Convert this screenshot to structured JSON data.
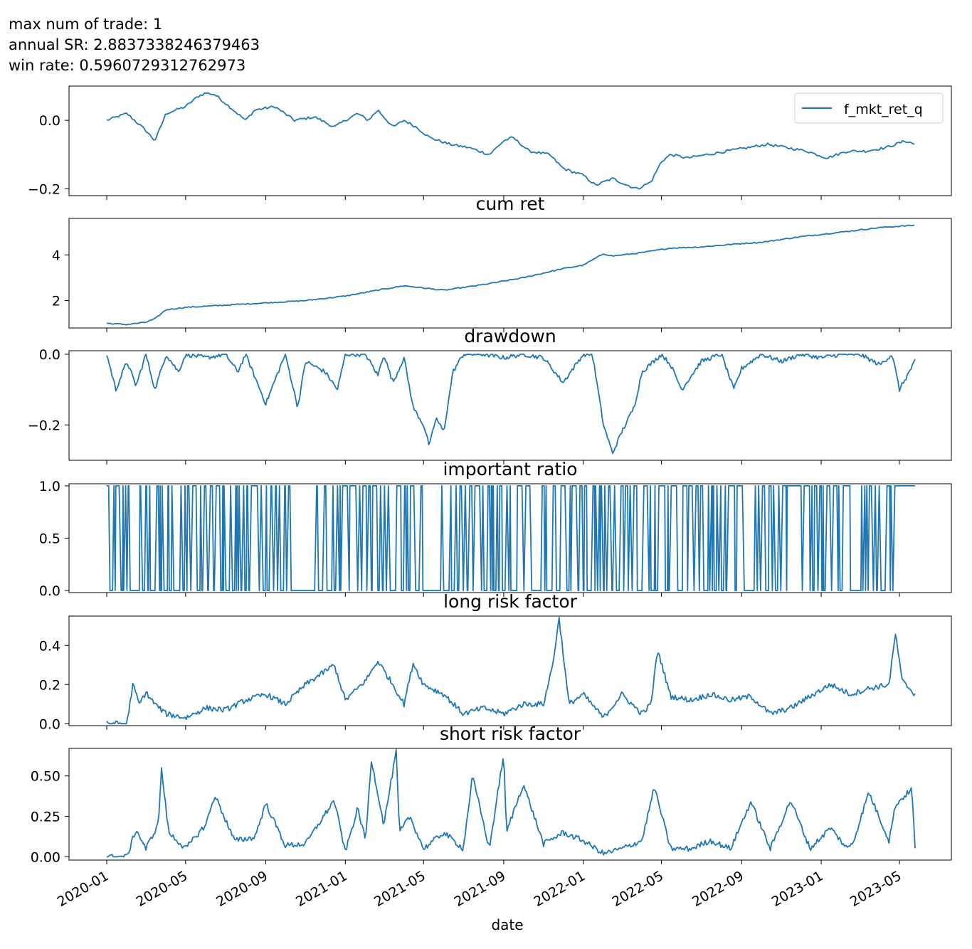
{
  "header": {
    "line1": "max num of trade: 1",
    "line2": "annual SR: 2.8837338246379463",
    "line3": "win rate: 0.5960729312762973"
  },
  "colors": {
    "line": "#1f77b4",
    "axis": "#000000",
    "background": "#ffffff"
  },
  "chart_data": {
    "type": "line",
    "xlabel": "date",
    "x_range": [
      "2020-01-01",
      "2023-06-30"
    ],
    "x_ticks": [
      "2020-01",
      "2020-05",
      "2020-09",
      "2021-01",
      "2021-05",
      "2021-09",
      "2022-01",
      "2022-05",
      "2022-09",
      "2023-01",
      "2023-05"
    ],
    "panels": [
      {
        "title": "",
        "legend": {
          "label": "f_mkt_ret_q",
          "position": "upper right"
        },
        "ylim": [
          -0.22,
          0.1
        ],
        "yticks": [
          0.0,
          -0.2
        ],
        "ytick_labels": [
          "0.0",
          "−0.2"
        ],
        "series": [
          {
            "name": "f_mkt_ret_q",
            "x": [
              "2020-01-01",
              "2020-02-01",
              "2020-03-01",
              "2020-03-15",
              "2020-04-01",
              "2020-05-01",
              "2020-05-20",
              "2020-06-01",
              "2020-06-15",
              "2020-07-01",
              "2020-08-01",
              "2020-08-15",
              "2020-09-15",
              "2020-10-15",
              "2020-11-15",
              "2020-12-15",
              "2021-01-01",
              "2021-01-20",
              "2021-02-05",
              "2021-02-20",
              "2021-03-15",
              "2021-04-01",
              "2021-04-20",
              "2021-05-10",
              "2021-06-10",
              "2021-07-10",
              "2021-08-10",
              "2021-09-01",
              "2021-09-15",
              "2021-10-10",
              "2021-11-10",
              "2021-12-01",
              "2021-12-15",
              "2022-01-01",
              "2022-01-20",
              "2022-02-15",
              "2022-03-10",
              "2022-03-25",
              "2022-04-15",
              "2022-05-01",
              "2022-05-15",
              "2022-06-10",
              "2022-07-10",
              "2022-08-10",
              "2022-09-10",
              "2022-10-10",
              "2022-11-10",
              "2022-12-10",
              "2023-01-10",
              "2023-02-10",
              "2023-03-10",
              "2023-04-10",
              "2023-05-10",
              "2023-05-25"
            ],
            "values": [
              0.0,
              0.02,
              -0.03,
              -0.06,
              0.02,
              0.04,
              0.07,
              0.08,
              0.075,
              0.05,
              0.0,
              0.03,
              0.04,
              0.0,
              0.01,
              -0.02,
              0.0,
              0.02,
              0.0,
              0.03,
              -0.02,
              0.0,
              -0.02,
              -0.05,
              -0.07,
              -0.08,
              -0.1,
              -0.06,
              -0.05,
              -0.09,
              -0.1,
              -0.14,
              -0.15,
              -0.16,
              -0.19,
              -0.17,
              -0.19,
              -0.2,
              -0.18,
              -0.12,
              -0.1,
              -0.11,
              -0.1,
              -0.09,
              -0.08,
              -0.07,
              -0.08,
              -0.09,
              -0.11,
              -0.09,
              -0.09,
              -0.08,
              -0.06,
              -0.07
            ]
          }
        ]
      },
      {
        "title": "cum ret",
        "ylim": [
          0.8,
          5.6
        ],
        "yticks": [
          2,
          4
        ],
        "ytick_labels": [
          "2",
          "4"
        ],
        "series": [
          {
            "name": "cum ret",
            "x": [
              "2020-01-01",
              "2020-02-01",
              "2020-03-01",
              "2020-03-15",
              "2020-04-01",
              "2020-05-01",
              "2020-07-01",
              "2020-09-01",
              "2020-11-01",
              "2021-01-01",
              "2021-03-01",
              "2021-04-01",
              "2021-06-01",
              "2021-08-01",
              "2021-10-01",
              "2021-12-01",
              "2022-01-01",
              "2022-02-01",
              "2022-02-15",
              "2022-04-01",
              "2022-05-15",
              "2022-07-01",
              "2022-09-01",
              "2022-10-01",
              "2022-12-01",
              "2023-02-01",
              "2023-04-01",
              "2023-05-25"
            ],
            "values": [
              1.0,
              0.95,
              1.05,
              1.2,
              1.6,
              1.7,
              1.8,
              1.9,
              2.0,
              2.2,
              2.5,
              2.65,
              2.45,
              2.7,
              3.0,
              3.4,
              3.55,
              4.05,
              3.95,
              4.1,
              4.3,
              4.35,
              4.5,
              4.55,
              4.8,
              5.0,
              5.2,
              5.3
            ]
          }
        ]
      },
      {
        "title": "drawdown",
        "ylim": [
          -0.3,
          0.01
        ],
        "yticks": [
          0.0,
          -0.2
        ],
        "ytick_labels": [
          "0.0",
          "−0.2"
        ],
        "series": [
          {
            "name": "drawdown",
            "x": [
              "2020-01-01",
              "2020-01-15",
              "2020-02-01",
              "2020-02-15",
              "2020-03-01",
              "2020-03-15",
              "2020-04-01",
              "2020-04-20",
              "2020-05-01",
              "2020-06-01",
              "2020-07-01",
              "2020-07-20",
              "2020-08-01",
              "2020-09-01",
              "2020-09-20",
              "2020-10-01",
              "2020-10-20",
              "2020-11-01",
              "2020-12-01",
              "2020-12-20",
              "2021-01-01",
              "2021-02-01",
              "2021-02-20",
              "2021-03-01",
              "2021-03-15",
              "2021-04-01",
              "2021-04-15",
              "2021-05-01",
              "2021-05-10",
              "2021-05-20",
              "2021-06-01",
              "2021-06-15",
              "2021-07-01",
              "2021-08-01",
              "2021-09-01",
              "2021-10-01",
              "2021-11-01",
              "2021-12-01",
              "2022-01-01",
              "2022-01-15",
              "2022-02-01",
              "2022-02-15",
              "2022-03-01",
              "2022-03-20",
              "2022-04-01",
              "2022-05-01",
              "2022-05-15",
              "2022-06-01",
              "2022-07-01",
              "2022-08-01",
              "2022-08-20",
              "2022-09-01",
              "2022-10-01",
              "2022-11-01",
              "2022-12-01",
              "2023-01-01",
              "2023-02-01",
              "2023-03-01",
              "2023-04-01",
              "2023-04-20",
              "2023-05-01",
              "2023-05-25"
            ],
            "values": [
              0.0,
              -0.1,
              -0.02,
              -0.09,
              0.0,
              -0.1,
              0.0,
              -0.05,
              0.0,
              -0.01,
              0.0,
              -0.05,
              0.0,
              -0.14,
              -0.05,
              0.0,
              -0.15,
              -0.02,
              -0.05,
              -0.1,
              0.0,
              0.0,
              -0.06,
              0.0,
              -0.08,
              -0.01,
              -0.15,
              -0.2,
              -0.26,
              -0.18,
              -0.22,
              -0.05,
              0.0,
              0.0,
              -0.01,
              0.0,
              -0.01,
              -0.08,
              0.0,
              0.0,
              -0.2,
              -0.28,
              -0.22,
              -0.15,
              -0.05,
              0.0,
              -0.03,
              -0.1,
              -0.02,
              0.0,
              -0.1,
              -0.04,
              0.0,
              -0.02,
              0.0,
              -0.01,
              0.0,
              0.0,
              -0.03,
              0.0,
              -0.1,
              -0.02
            ]
          }
        ]
      },
      {
        "title": "important ratio",
        "ylim": [
          -0.02,
          1.02
        ],
        "yticks": [
          0.0,
          0.5,
          1.0
        ],
        "ytick_labels": [
          "0.0",
          "0.5",
          "1.0"
        ],
        "gap_intervals": [
          [
            "2020-10-10",
            "2020-11-15"
          ],
          [
            "2021-05-01",
            "2021-05-25"
          ],
          [
            "2023-02-15",
            "2023-03-01"
          ],
          [
            "2023-04-01",
            "2023-04-10"
          ]
        ],
        "series": [
          {
            "name": "important ratio",
            "values_set": [
              0,
              1
            ]
          }
        ]
      },
      {
        "title": "long risk factor",
        "ylim": [
          -0.01,
          0.55
        ],
        "yticks": [
          0.0,
          0.2,
          0.4
        ],
        "ytick_labels": [
          "0.0",
          "0.2",
          "0.4"
        ],
        "series": [
          {
            "name": "long risk factor",
            "x": [
              "2020-01-01",
              "2020-02-01",
              "2020-02-10",
              "2020-02-20",
              "2020-03-01",
              "2020-03-15",
              "2020-04-01",
              "2020-05-01",
              "2020-06-01",
              "2020-07-01",
              "2020-08-01",
              "2020-09-01",
              "2020-10-01",
              "2020-11-01",
              "2020-12-15",
              "2021-01-01",
              "2021-02-01",
              "2021-02-20",
              "2021-03-15",
              "2021-04-01",
              "2021-04-15",
              "2021-05-01",
              "2021-06-01",
              "2021-07-01",
              "2021-08-01",
              "2021-09-01",
              "2021-10-01",
              "2021-11-01",
              "2021-11-15",
              "2021-11-25",
              "2021-12-10",
              "2022-01-01",
              "2022-02-01",
              "2022-03-01",
              "2022-04-01",
              "2022-04-15",
              "2022-04-25",
              "2022-05-15",
              "2022-06-15",
              "2022-07-15",
              "2022-08-15",
              "2022-09-15",
              "2022-10-15",
              "2022-11-15",
              "2022-12-15",
              "2023-01-15",
              "2023-02-15",
              "2023-03-15",
              "2023-04-15",
              "2023-04-25",
              "2023-05-05",
              "2023-05-25"
            ],
            "values": [
              0.0,
              0.0,
              0.2,
              0.1,
              0.16,
              0.1,
              0.05,
              0.03,
              0.08,
              0.07,
              0.12,
              0.15,
              0.1,
              0.2,
              0.3,
              0.12,
              0.22,
              0.32,
              0.2,
              0.1,
              0.31,
              0.2,
              0.15,
              0.05,
              0.08,
              0.05,
              0.1,
              0.1,
              0.3,
              0.54,
              0.1,
              0.15,
              0.03,
              0.15,
              0.05,
              0.1,
              0.38,
              0.14,
              0.12,
              0.15,
              0.12,
              0.14,
              0.05,
              0.08,
              0.14,
              0.2,
              0.15,
              0.18,
              0.2,
              0.46,
              0.22,
              0.15
            ]
          }
        ]
      },
      {
        "title": "short risk factor",
        "ylim": [
          -0.02,
          0.67
        ],
        "yticks": [
          0.0,
          0.25,
          0.5
        ],
        "ytick_labels": [
          "0.00",
          "0.25",
          "0.50"
        ],
        "series": [
          {
            "name": "short risk factor",
            "x": [
              "2020-01-01",
              "2020-02-01",
              "2020-02-15",
              "2020-03-01",
              "2020-03-20",
              "2020-03-25",
              "2020-04-05",
              "2020-05-01",
              "2020-06-01",
              "2020-06-15",
              "2020-07-15",
              "2020-08-15",
              "2020-09-01",
              "2020-10-01",
              "2020-11-01",
              "2020-12-15",
              "2021-01-01",
              "2021-01-20",
              "2021-02-01",
              "2021-02-10",
              "2021-03-01",
              "2021-03-20",
              "2021-03-25",
              "2021-04-10",
              "2021-05-01",
              "2021-06-01",
              "2021-07-01",
              "2021-07-15",
              "2021-08-10",
              "2021-09-01",
              "2021-09-05",
              "2021-10-01",
              "2021-11-01",
              "2021-12-01",
              "2022-01-01",
              "2022-02-01",
              "2022-03-01",
              "2022-04-01",
              "2022-04-20",
              "2022-05-15",
              "2022-06-15",
              "2022-07-15",
              "2022-08-15",
              "2022-09-15",
              "2022-10-15",
              "2022-11-15",
              "2022-12-15",
              "2023-01-15",
              "2023-02-10",
              "2023-02-20",
              "2023-03-15",
              "2023-04-15",
              "2023-04-25",
              "2023-05-20",
              "2023-05-25"
            ],
            "values": [
              0.0,
              0.0,
              0.17,
              0.05,
              0.2,
              0.54,
              0.15,
              0.05,
              0.2,
              0.38,
              0.1,
              0.12,
              0.33,
              0.07,
              0.08,
              0.35,
              0.03,
              0.3,
              0.1,
              0.6,
              0.2,
              0.65,
              0.15,
              0.25,
              0.05,
              0.15,
              0.05,
              0.5,
              0.05,
              0.64,
              0.15,
              0.45,
              0.08,
              0.15,
              0.1,
              0.02,
              0.05,
              0.1,
              0.43,
              0.05,
              0.05,
              0.1,
              0.05,
              0.34,
              0.05,
              0.35,
              0.05,
              0.18,
              0.05,
              0.1,
              0.4,
              0.1,
              0.32,
              0.42,
              0.05
            ]
          }
        ]
      }
    ]
  }
}
